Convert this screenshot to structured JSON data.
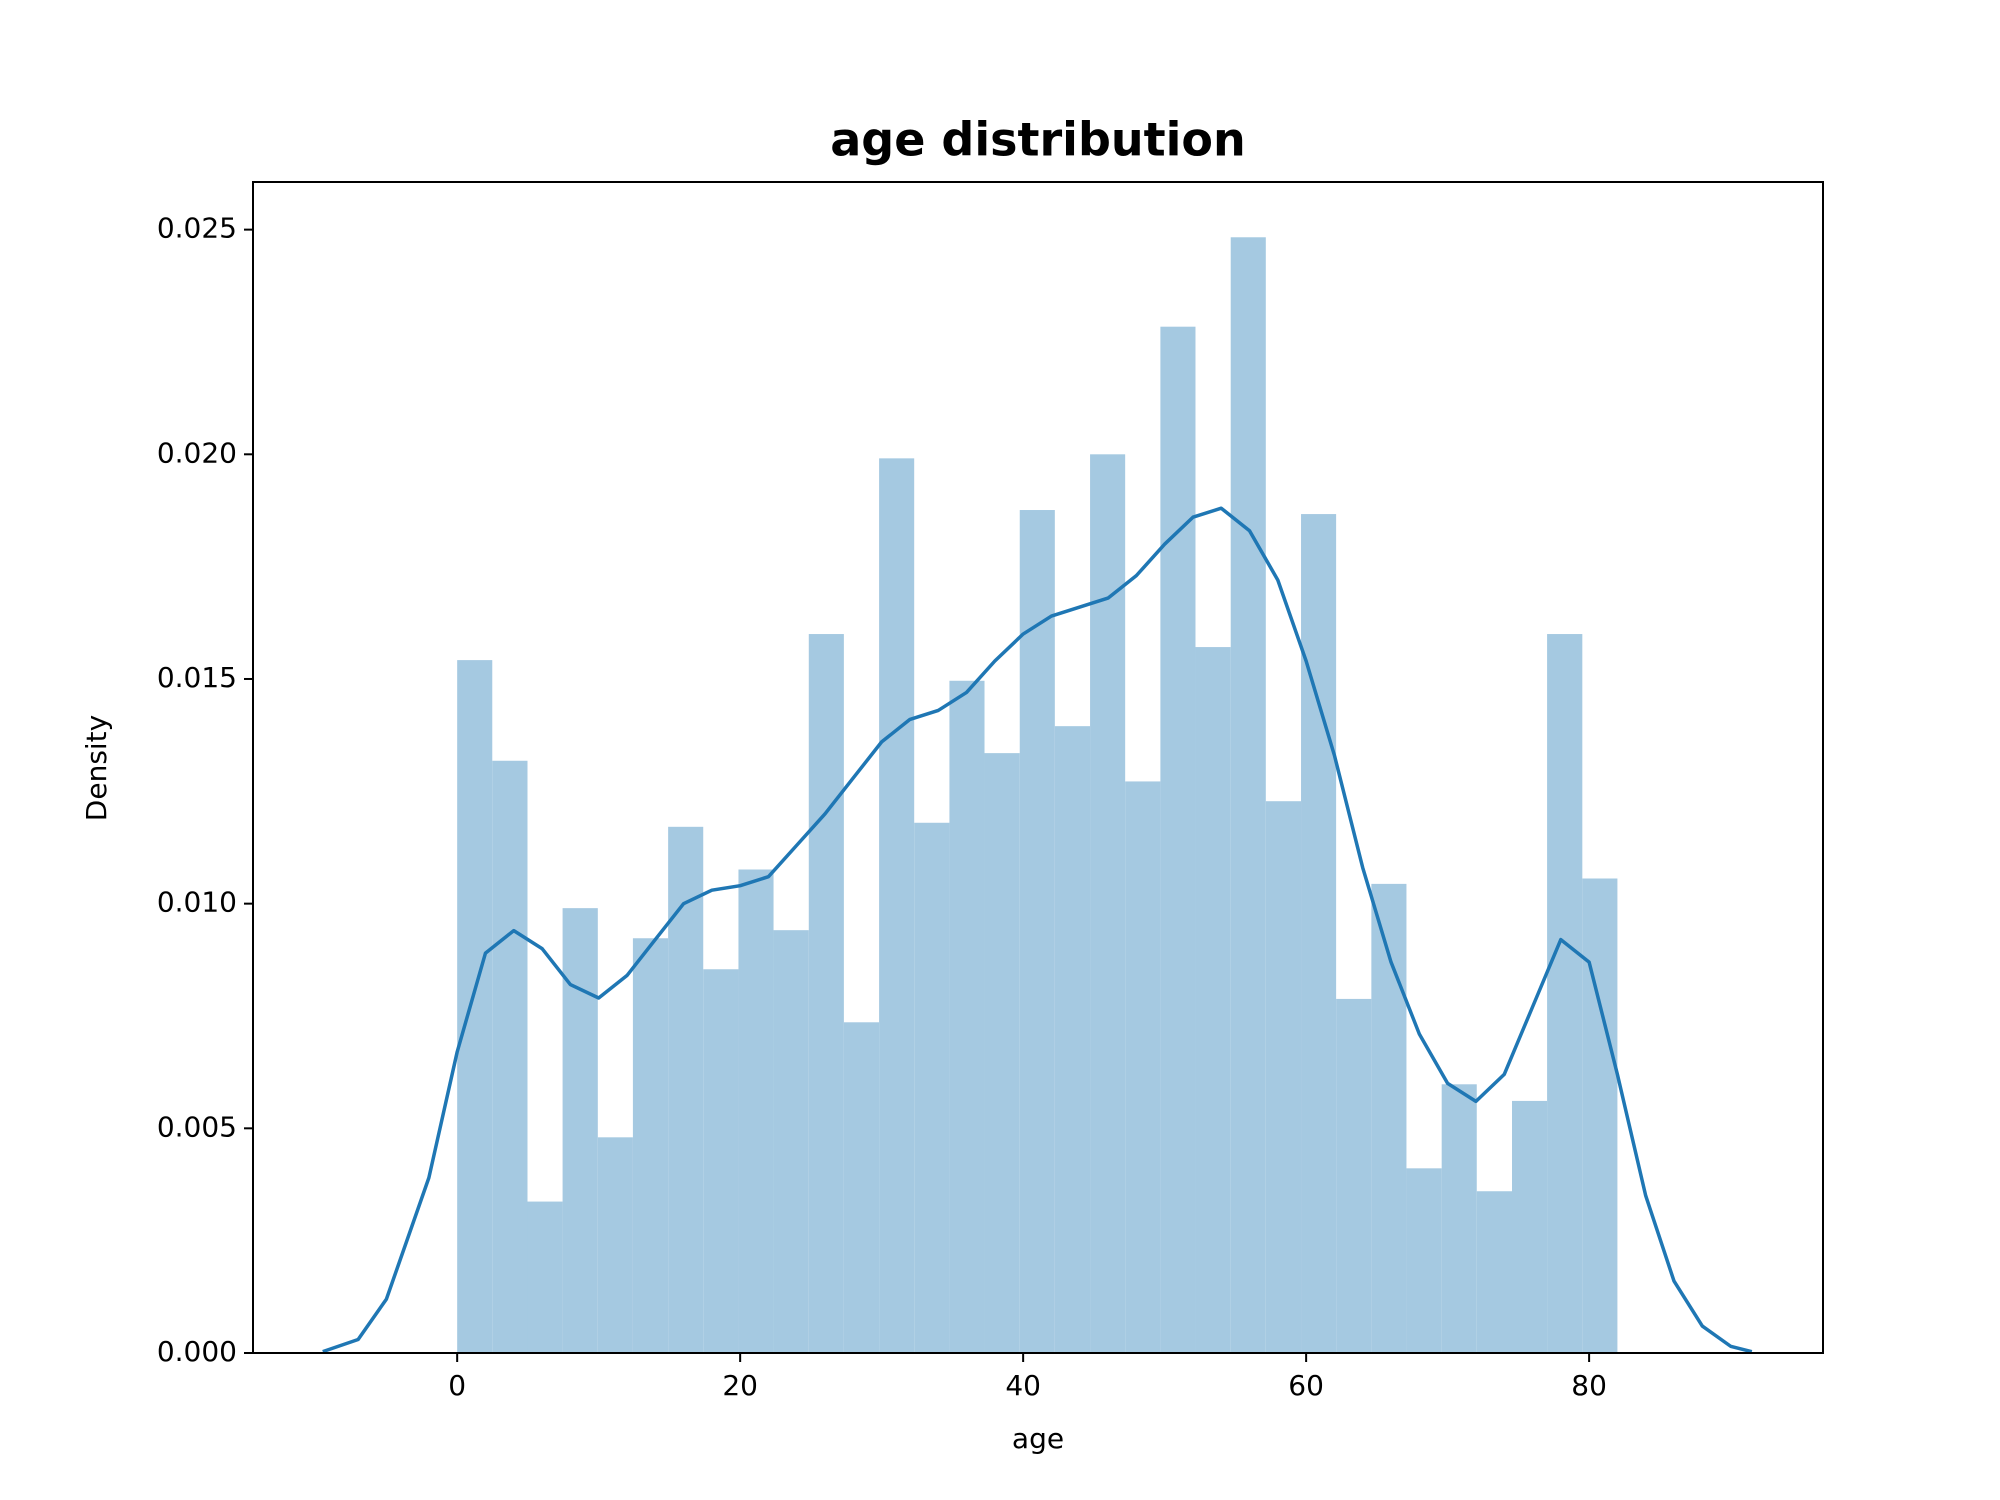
{
  "chart_data": {
    "type": "histogram",
    "title": "age distribution",
    "xlabel": "age",
    "ylabel": "Density",
    "color": "#a5c9e1",
    "bins": [
      0,
      2.48,
      4.97,
      7.45,
      9.94,
      12.42,
      14.91,
      17.39,
      19.88,
      22.36,
      24.85,
      27.33,
      29.82,
      32.3,
      34.79,
      37.27,
      39.76,
      42.24,
      44.73,
      47.21,
      49.7,
      52.18,
      54.67,
      57.15,
      59.64,
      62.12,
      64.61,
      67.09,
      69.58,
      72.06,
      74.55,
      77.03,
      79.52,
      82
    ],
    "values": [
      0.01542,
      0.01318,
      0.00337,
      0.0099,
      0.0048,
      0.00923,
      0.01171,
      0.00854,
      0.01076,
      0.00941,
      0.016,
      0.00736,
      0.01991,
      0.0118,
      0.01496,
      0.01335,
      0.01876,
      0.01395,
      0.02,
      0.01272,
      0.02284,
      0.01571,
      0.02483,
      0.01228,
      0.01867,
      0.00788,
      0.01044,
      0.00411,
      0.00598,
      0.0036,
      0.00561,
      0.016,
      0.01056
    ],
    "kde": {
      "type": "line",
      "color": "#1f77b4",
      "x": [
        -9.5,
        -7,
        -5,
        -2,
        0,
        2,
        4,
        6,
        8,
        10,
        12,
        14,
        16,
        18,
        20,
        22,
        24,
        26,
        28,
        30,
        32,
        34,
        36,
        38,
        40,
        42,
        44,
        46,
        48,
        50,
        52,
        54,
        56,
        58,
        60,
        62,
        64,
        66,
        68,
        70,
        72,
        74,
        76,
        78,
        80,
        82,
        84,
        86,
        88,
        90,
        91.5
      ],
      "values": [
        3e-05,
        0.0003,
        0.0012,
        0.0039,
        0.0067,
        0.0089,
        0.0094,
        0.009,
        0.0082,
        0.0079,
        0.0084,
        0.0092,
        0.01,
        0.0103,
        0.0104,
        0.0106,
        0.0113,
        0.012,
        0.0128,
        0.0136,
        0.0141,
        0.0143,
        0.0147,
        0.0154,
        0.016,
        0.0164,
        0.0166,
        0.0168,
        0.0173,
        0.018,
        0.0186,
        0.0188,
        0.0183,
        0.0172,
        0.0154,
        0.0133,
        0.0108,
        0.0087,
        0.0071,
        0.006,
        0.0056,
        0.0062,
        0.0077,
        0.0092,
        0.0087,
        0.0062,
        0.0035,
        0.0016,
        0.0006,
        0.00015,
        3e-05
      ]
    },
    "xlim": [
      -14.43,
      96.53
    ],
    "ylim": [
      0,
      0.02606
    ],
    "xticks": [
      0,
      20,
      40,
      60,
      80
    ],
    "yticks": [
      {
        "value": 0,
        "label": "0.000"
      },
      0.005,
      {
        "value": 0.01,
        "label": "0.010"
      },
      0.015,
      {
        "value": 0.02,
        "label": "0.020"
      },
      0.025
    ]
  }
}
